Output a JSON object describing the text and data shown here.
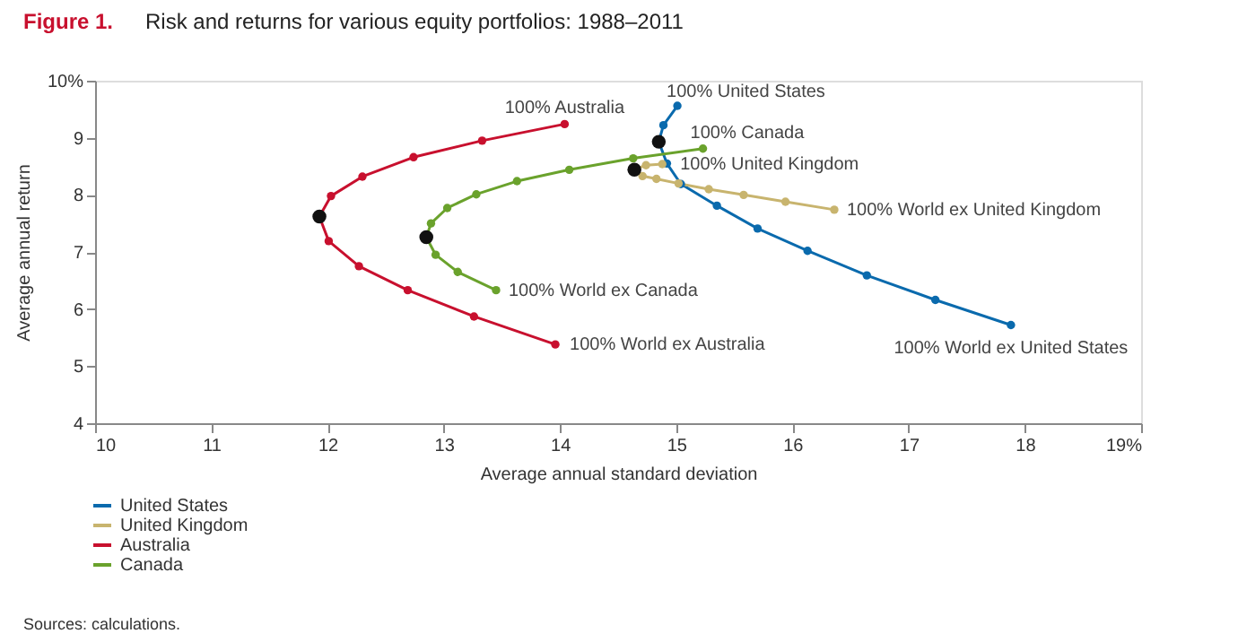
{
  "chart_data": {
    "type": "line",
    "title": "Risk and returns for various equity portfolios: 1988–2011",
    "xlabel": "Average annual standard deviation",
    "ylabel": "Average annual return",
    "xlim": [
      10,
      19
    ],
    "ylim": [
      4,
      10
    ],
    "xticks": [
      10,
      11,
      12,
      13,
      14,
      15,
      16,
      17,
      18,
      {
        "value": 19,
        "label": "19%"
      }
    ],
    "yticks": [
      4,
      5,
      6,
      7,
      8,
      9,
      {
        "value": 10,
        "label": "10%"
      }
    ],
    "grid": false,
    "marker": "circle",
    "line_style": "solid",
    "legend": "bottom left",
    "series": [
      {
        "name": "United States",
        "color": "#0a6aad",
        "x": [
          15.01,
          14.89,
          14.85,
          14.92,
          15.04,
          15.35,
          15.7,
          16.13,
          16.64,
          17.23,
          17.88
        ],
        "values": [
          9.56,
          9.22,
          8.93,
          8.55,
          8.19,
          7.81,
          7.41,
          7.02,
          6.59,
          6.16,
          5.72
        ]
      },
      {
        "name": "United Kingdom",
        "color": "#c8b46e",
        "x": [
          14.88,
          14.74,
          14.64,
          14.71,
          14.83,
          15.02,
          15.28,
          15.58,
          15.94,
          16.36
        ],
        "values": [
          8.54,
          8.52,
          8.44,
          8.33,
          8.28,
          8.2,
          8.1,
          8.0,
          7.88,
          7.74
        ]
      },
      {
        "name": "Australia",
        "color": "#c8102e",
        "x": [
          14.04,
          13.33,
          12.74,
          12.3,
          12.03,
          11.93,
          12.01,
          12.27,
          12.69,
          13.26,
          13.96
        ],
        "values": [
          9.24,
          8.95,
          8.66,
          8.32,
          7.98,
          7.62,
          7.19,
          6.75,
          6.33,
          5.87,
          5.38
        ]
      },
      {
        "name": "Canada",
        "color": "#6aa22c",
        "x": [
          15.23,
          14.63,
          14.08,
          13.63,
          13.28,
          13.03,
          12.89,
          12.85,
          12.93,
          13.12,
          13.45
        ],
        "values": [
          8.81,
          8.64,
          8.44,
          8.24,
          8.01,
          7.77,
          7.5,
          7.26,
          6.95,
          6.65,
          6.33
        ]
      },
      {
        "type": "scatter",
        "color": "#111111",
        "x": [
          14.85,
          14.64,
          11.93,
          12.85
        ],
        "values": [
          8.93,
          8.44,
          7.62,
          7.26
        ]
      }
    ],
    "annotations": [
      "Figure 1.",
      "Sources: calculations.",
      {
        "text": "100% United States",
        "x": 15.01,
        "y": 9.56
      },
      {
        "text": "100% Canada",
        "x": 15.23,
        "y": 8.81
      },
      {
        "text": "100% United Kingdom",
        "x": 14.88,
        "y": 8.54
      },
      {
        "text": "100% World ex United Kingdom",
        "x": 16.36,
        "y": 7.74
      },
      {
        "text": "100% World ex United States",
        "x": 17.88,
        "y": 5.72
      },
      {
        "text": "100% Australia",
        "x": 14.04,
        "y": 9.24
      },
      {
        "text": "100% World ex Canada",
        "x": 13.45,
        "y": 6.33
      },
      {
        "text": "100% World ex Australia",
        "x": 13.96,
        "y": 5.38
      }
    ]
  }
}
